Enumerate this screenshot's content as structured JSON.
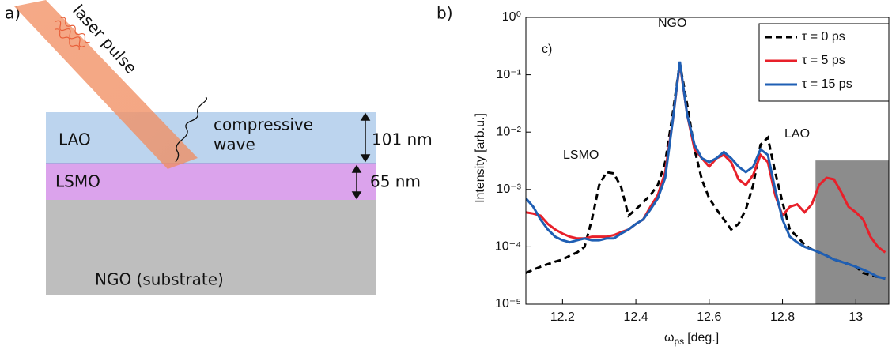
{
  "diagram": {
    "panel_label": "a)",
    "laser_label": "laser pulse",
    "wave_label": [
      "compressive",
      "wave"
    ],
    "layers": [
      {
        "name": "LAO",
        "thickness": "101 nm"
      },
      {
        "name": "LSMO",
        "thickness": "65 nm"
      },
      {
        "name": "NGO (substrate)"
      }
    ]
  },
  "chart_data": {
    "type": "line",
    "panel_label": "b)",
    "title": "c)",
    "x_label": "ω",
    "x_label_sub": "ps",
    "x_label_unit": "[deg.]",
    "y_label": "Intensity [arb.u.]",
    "log_y": true,
    "xlim": [
      12.1,
      13.09
    ],
    "xticks": [
      12.2,
      12.4,
      12.6,
      12.8,
      13
    ],
    "ylim": [
      1e-05,
      1
    ],
    "yticks": [
      {
        "value": 1e-05,
        "label": "10⁻⁵"
      },
      {
        "value": 0.0001,
        "label": "10⁻⁴"
      },
      {
        "value": 0.001,
        "label": "10⁻³"
      },
      {
        "value": 0.01,
        "label": "10⁻²"
      },
      {
        "value": 0.1,
        "label": "10⁻¹"
      },
      {
        "value": 1,
        "label": "10⁰"
      }
    ],
    "annotations": [
      {
        "text": "NGO",
        "x": 12.52
      },
      {
        "text": "LSMO",
        "x": 12.33
      },
      {
        "text": "LAO",
        "x": 12.83
      }
    ],
    "shaded_region": {
      "x": [
        12.89,
        13.09
      ],
      "y": [
        1e-05,
        0.0032
      ],
      "color": "#8c8c8c"
    },
    "legend": "upper right",
    "x": [
      12.1,
      12.12,
      12.14,
      12.16,
      12.18,
      12.2,
      12.22,
      12.24,
      12.26,
      12.28,
      12.3,
      12.32,
      12.34,
      12.36,
      12.38,
      12.4,
      12.42,
      12.44,
      12.46,
      12.48,
      12.5,
      12.52,
      12.54,
      12.56,
      12.58,
      12.6,
      12.62,
      12.64,
      12.66,
      12.68,
      12.7,
      12.72,
      12.74,
      12.76,
      12.78,
      12.8,
      12.82,
      12.84,
      12.86,
      12.88,
      12.9,
      12.92,
      12.94,
      12.96,
      12.98,
      13,
      13.02,
      13.04,
      13.06,
      13.08
    ],
    "series": [
      {
        "name": "τ = 0 ps",
        "color": "#000000",
        "dashed": true,
        "values": [
          3.5e-05,
          4e-05,
          4.5e-05,
          5e-05,
          5.5e-05,
          6e-05,
          7e-05,
          8e-05,
          0.0001,
          0.0003,
          0.0012,
          0.002,
          0.0019,
          0.0011,
          0.00035,
          0.00045,
          0.0006,
          0.0008,
          0.0012,
          0.003,
          0.02,
          0.16,
          0.03,
          0.005,
          0.0015,
          0.0007,
          0.00045,
          0.0003,
          0.0002,
          0.00025,
          0.00045,
          0.0012,
          0.006,
          0.008,
          0.002,
          0.0006,
          0.0002,
          0.00015,
          0.00011,
          9e-05,
          8e-05,
          7e-05,
          6e-05,
          5.5e-05,
          5e-05,
          4.5e-05,
          3.5e-05,
          3.2e-05,
          3e-05,
          2.8e-05
        ]
      },
      {
        "name": "τ = 5 ps",
        "color": "#e8202a",
        "dashed": false,
        "values": [
          0.0004,
          0.00038,
          0.00035,
          0.00025,
          0.0002,
          0.00017,
          0.00015,
          0.00014,
          0.00014,
          0.00015,
          0.00015,
          0.00015,
          0.00016,
          0.00018,
          0.0002,
          0.00025,
          0.0003,
          0.0005,
          0.0008,
          0.002,
          0.015,
          0.16,
          0.02,
          0.005,
          0.0035,
          0.0025,
          0.0035,
          0.004,
          0.003,
          0.0015,
          0.0012,
          0.0018,
          0.004,
          0.003,
          0.0008,
          0.00035,
          0.0005,
          0.00055,
          0.0004,
          0.00055,
          0.0012,
          0.0016,
          0.0015,
          0.0009,
          0.0005,
          0.0004,
          0.0003,
          0.00015,
          0.0001,
          8e-05
        ]
      },
      {
        "name": "τ = 15 ps",
        "color": "#1f5fb4",
        "dashed": false,
        "values": [
          0.0007,
          0.0005,
          0.0003,
          0.0002,
          0.00015,
          0.00013,
          0.00012,
          0.00013,
          0.00014,
          0.00013,
          0.00013,
          0.00014,
          0.00014,
          0.00017,
          0.0002,
          0.00025,
          0.0003,
          0.00045,
          0.0007,
          0.0016,
          0.015,
          0.17,
          0.02,
          0.006,
          0.0035,
          0.003,
          0.0035,
          0.0045,
          0.0035,
          0.0025,
          0.002,
          0.0025,
          0.005,
          0.004,
          0.001,
          0.0003,
          0.00015,
          0.00012,
          0.0001,
          9e-05,
          8e-05,
          7e-05,
          6e-05,
          5.5e-05,
          5e-05,
          4.5e-05,
          4e-05,
          3.5e-05,
          3e-05,
          2.8e-05
        ]
      }
    ]
  }
}
